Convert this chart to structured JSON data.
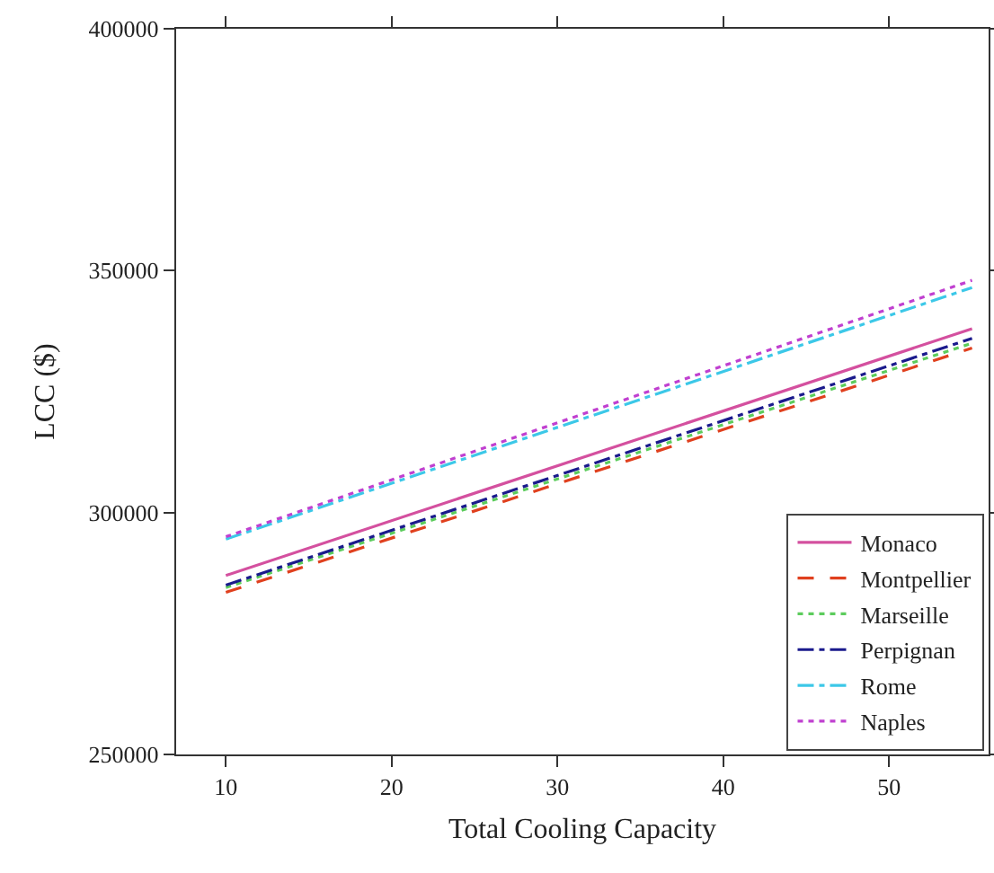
{
  "chart_data": {
    "type": "line",
    "xlabel": "Total Cooling Capacity",
    "ylabel": "LCC ($)",
    "x": [
      10,
      55
    ],
    "xlim": [
      7,
      56
    ],
    "xticks": [
      10,
      20,
      30,
      40,
      50
    ],
    "ylim": [
      250000,
      400000
    ],
    "yticks": [
      250000,
      300000,
      350000,
      400000
    ],
    "grid": false,
    "legend": "bottom right",
    "marker": "none",
    "series": [
      {
        "name": "Monaco",
        "color": "#d4509f",
        "line_style": "solid",
        "values": [
          287000,
          338000
        ]
      },
      {
        "name": "Montpellier",
        "color": "#e0401e",
        "line_style": "dashed",
        "values": [
          283500,
          334000
        ]
      },
      {
        "name": "Marseille",
        "color": "#5ccc5c",
        "line_style": "dotted",
        "values": [
          284500,
          335000
        ]
      },
      {
        "name": "Perpignan",
        "color": "#1a1a8c",
        "line_style": "dashdot",
        "values": [
          285000,
          336000
        ]
      },
      {
        "name": "Rome",
        "color": "#3cc8e8",
        "line_style": "dashdot",
        "values": [
          294500,
          346500
        ]
      },
      {
        "name": "Naples",
        "color": "#c040d0",
        "line_style": "dotted",
        "values": [
          295000,
          348000
        ]
      }
    ]
  }
}
